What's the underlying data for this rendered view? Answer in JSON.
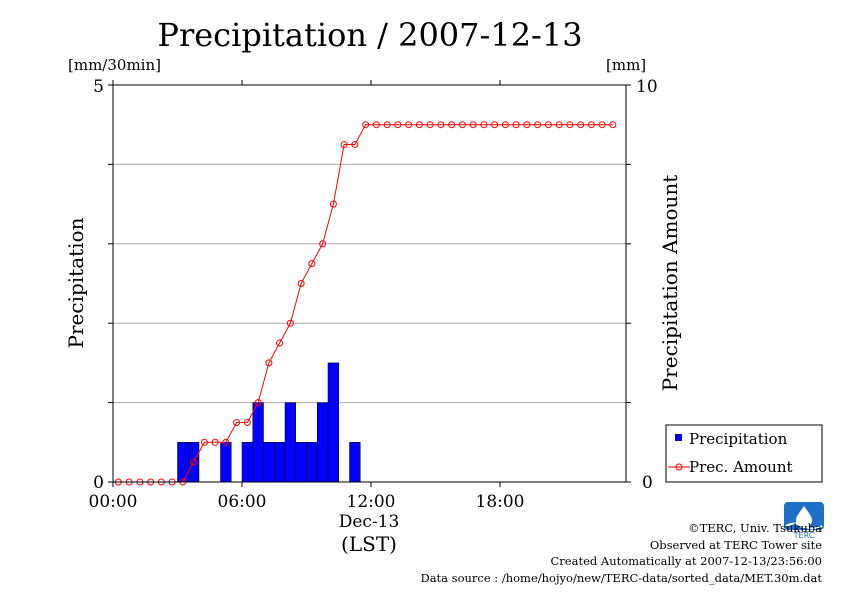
{
  "chart_data": {
    "type": "bar+line",
    "title": "Precipitation / 2007-12-13",
    "ylabel_left": "Precipitation",
    "ylabel_right": "Precipitation Amount",
    "unit_left": "[mm/30min]",
    "unit_right": "[mm]",
    "ylim_left": [
      0,
      5
    ],
    "ylim_right": [
      0,
      10
    ],
    "left_ticks": [
      "0",
      "5"
    ],
    "right_ticks": [
      "0",
      "10"
    ],
    "xlim_hours": [
      0,
      24
    ],
    "x_ticks": [
      {
        "hour": 0,
        "label": "00:00"
      },
      {
        "hour": 6,
        "label": "06:00"
      },
      {
        "hour": 12,
        "label": "12:00"
      },
      {
        "hour": 18,
        "label": "18:00"
      }
    ],
    "date_label": "Dec-13",
    "xlabel": "(LST)",
    "grid": true,
    "legend_position": "bottom-right",
    "series": [
      {
        "name": "Precipitation",
        "kind": "bar",
        "color": "#0000ff",
        "x_hours": [
          0,
          0.5,
          1,
          1.5,
          2,
          2.5,
          3,
          3.5,
          4,
          4.5,
          5,
          5.5,
          6,
          6.5,
          7,
          7.5,
          8,
          8.5,
          9,
          9.5,
          10,
          10.5,
          11,
          11.5,
          12,
          12.5,
          13,
          13.5,
          14,
          14.5,
          15,
          15.5,
          16,
          16.5,
          17,
          17.5,
          18,
          18.5,
          19,
          19.5,
          20,
          20.5,
          21,
          21.5,
          22,
          22.5,
          23
        ],
        "values": [
          0,
          0,
          0,
          0,
          0,
          0,
          0.5,
          0.5,
          0,
          0,
          0.5,
          0,
          0.5,
          1,
          0.5,
          0.5,
          1,
          0.5,
          0.5,
          1,
          1.5,
          0,
          0.5,
          0,
          0,
          0,
          0,
          0,
          0,
          0,
          0,
          0,
          0,
          0,
          0,
          0,
          0,
          0,
          0,
          0,
          0,
          0,
          0,
          0,
          0,
          0,
          0
        ]
      },
      {
        "name": "Prec. Amount",
        "kind": "line",
        "color": "#ff0000",
        "x_hours": [
          0,
          0.5,
          1,
          1.5,
          2,
          2.5,
          3,
          3.5,
          4,
          4.5,
          5,
          5.5,
          6,
          6.5,
          7,
          7.5,
          8,
          8.5,
          9,
          9.5,
          10,
          10.5,
          11,
          11.5,
          12,
          12.5,
          13,
          13.5,
          14,
          14.5,
          15,
          15.5,
          16,
          16.5,
          17,
          17.5,
          18,
          18.5,
          19,
          19.5,
          20,
          20.5,
          21,
          21.5,
          22,
          22.5,
          23
        ],
        "values": [
          0,
          0,
          0,
          0,
          0,
          0,
          0,
          0.5,
          1,
          1,
          1,
          1.5,
          1.5,
          2,
          3,
          3.5,
          4,
          5,
          5.5,
          6,
          7,
          8.5,
          8.5,
          9,
          9,
          9,
          9,
          9,
          9,
          9,
          9,
          9,
          9,
          9,
          9,
          9,
          9,
          9,
          9,
          9,
          9,
          9,
          9,
          9,
          9,
          9,
          9
        ]
      }
    ]
  },
  "credits": {
    "copyright": "©TERC, Univ. Tsukuba",
    "observed": "Observed at TERC Tower site",
    "created": "Created Automatically at 2007-12-13/23:56:00",
    "source": "Data source : /home/hojyo/new/TERC-data/sorted_data/MET.30m.dat"
  },
  "logo": {
    "text": "TERC",
    "color": "#1e6fc8"
  }
}
